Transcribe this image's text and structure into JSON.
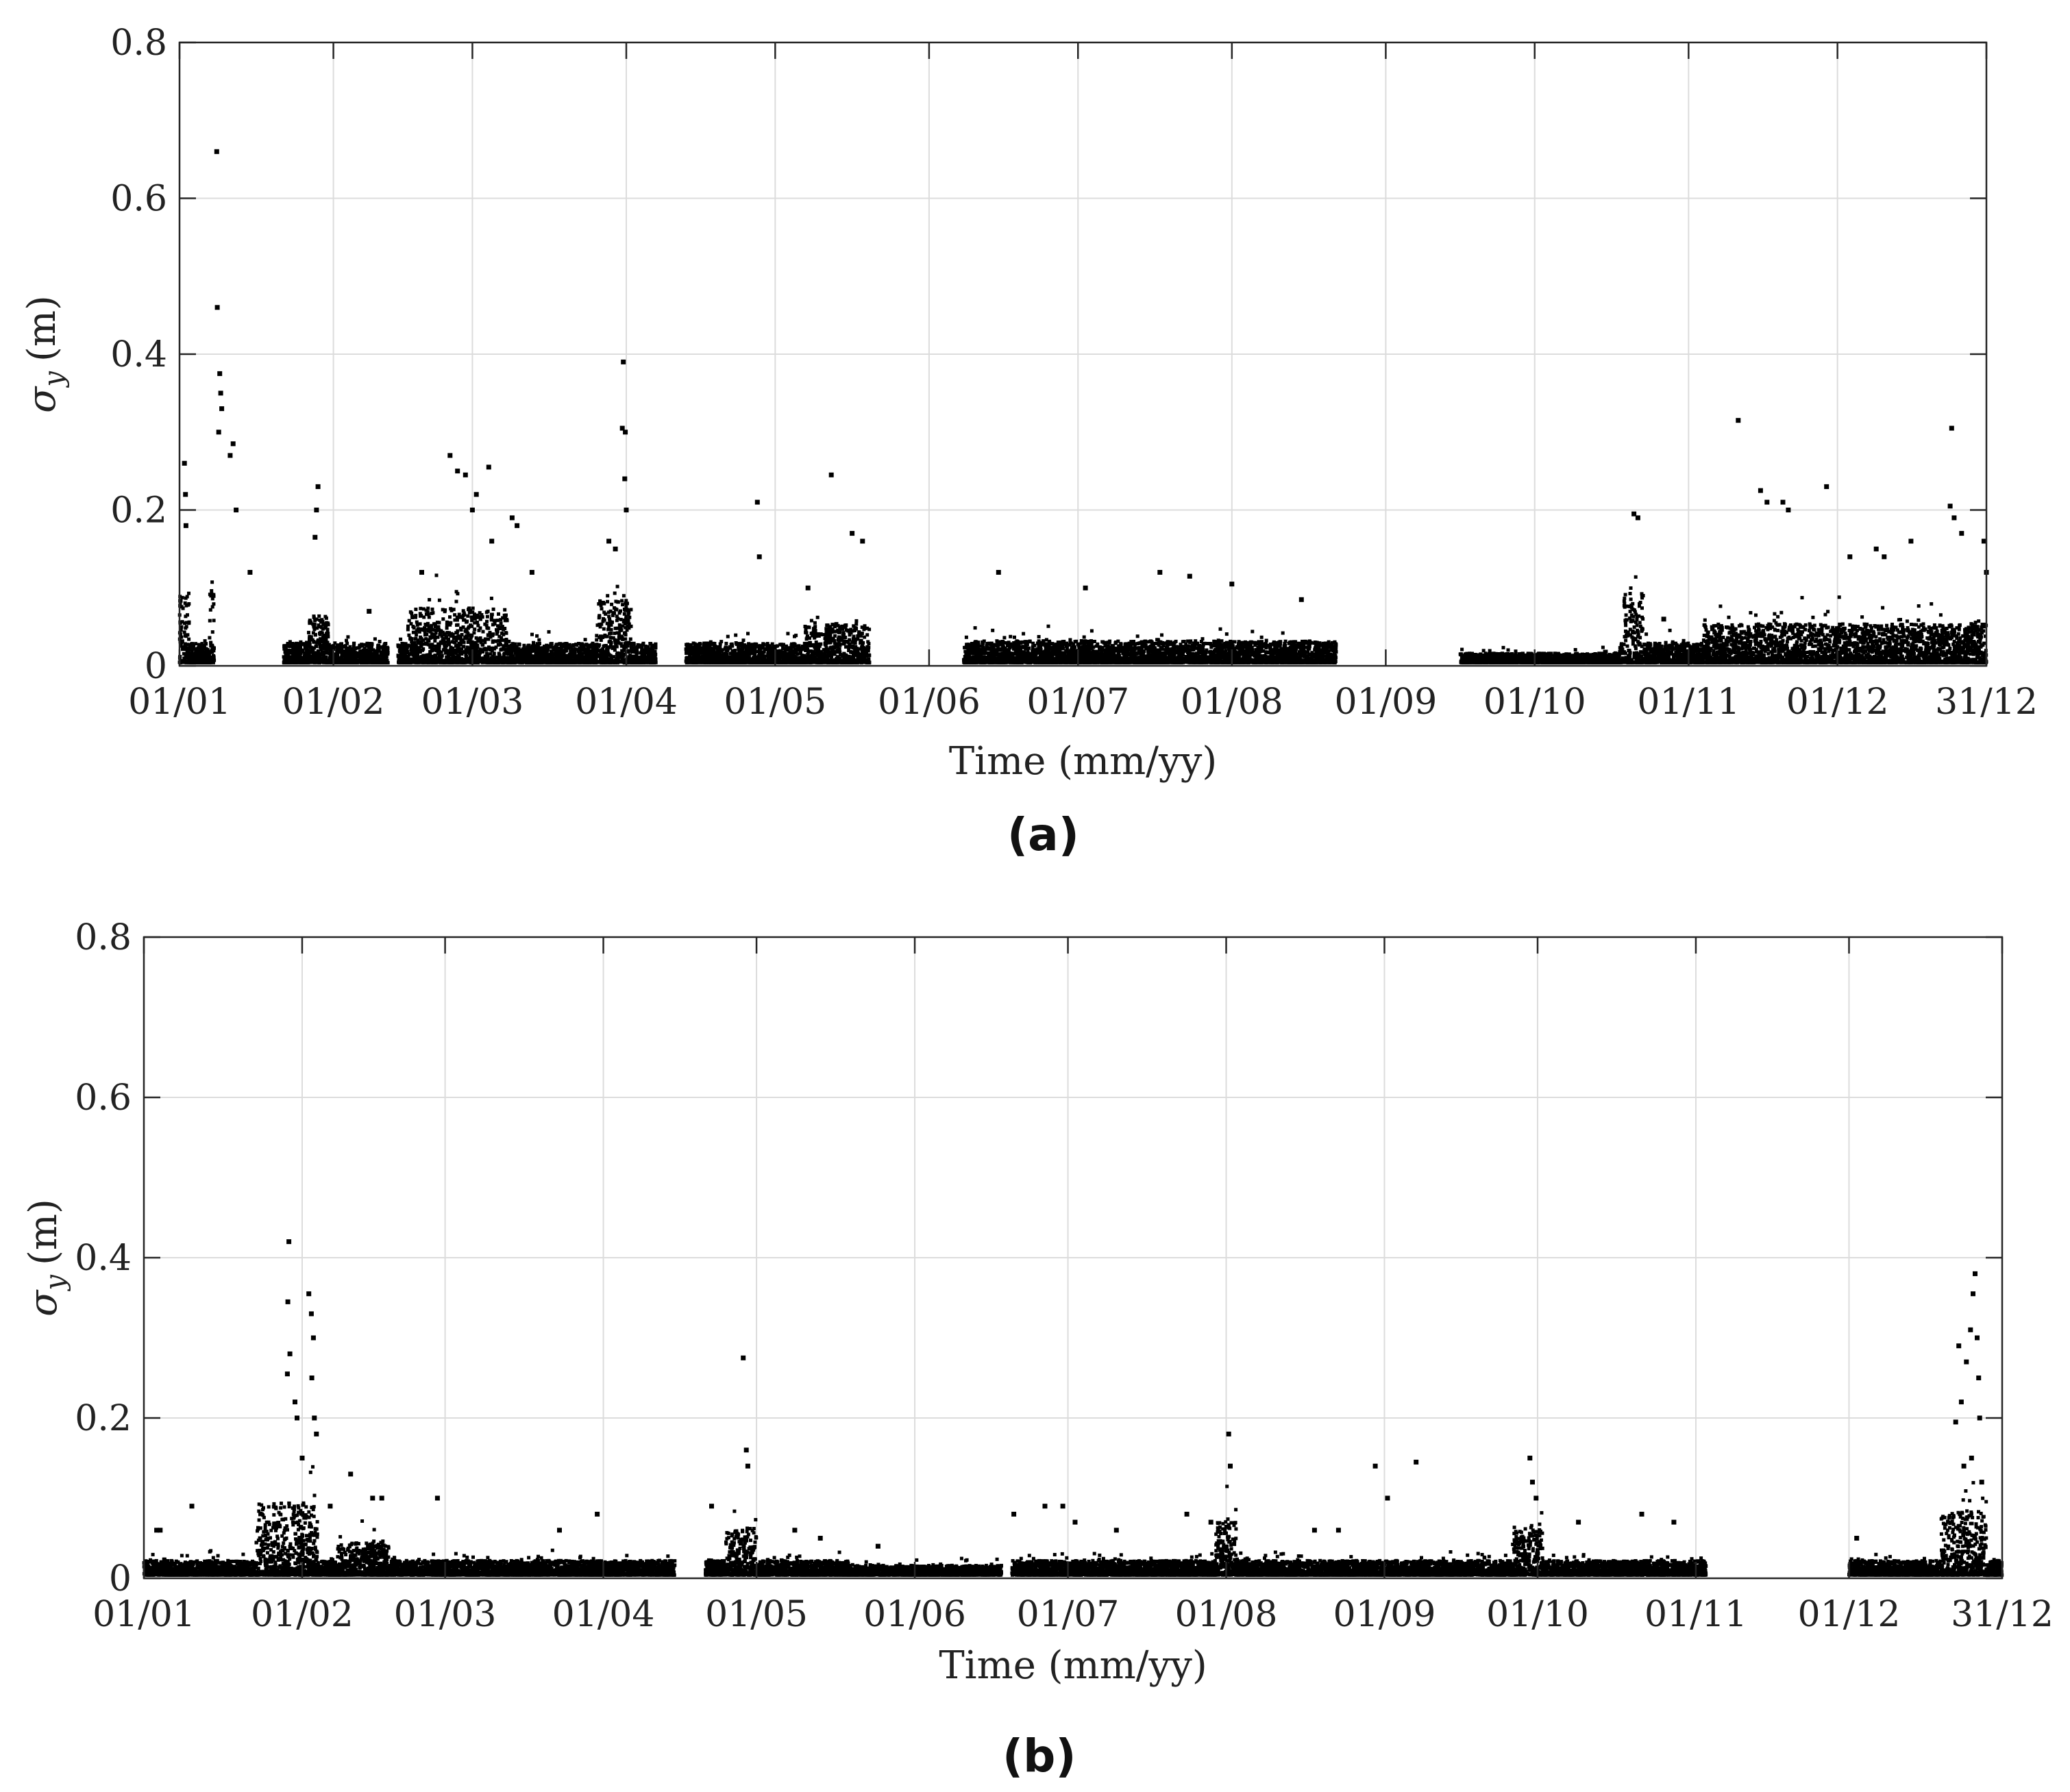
{
  "figure": {
    "panel_a_label": "(a)",
    "panel_b_label": "(b)"
  },
  "chart_data": [
    {
      "type": "scatter",
      "panel": "(a)",
      "xlabel": "Time (mm/yy)",
      "ylabel": "σ",
      "ylabel_subscript": "y",
      "ylabel_unit": "(m)",
      "x_tick_labels": [
        "01/01",
        "01/02",
        "01/03",
        "01/04",
        "01/05",
        "01/06",
        "01/07",
        "01/08",
        "01/09",
        "01/10",
        "01/11",
        "01/12",
        "31/12"
      ],
      "x_tick_days": [
        0,
        31,
        59,
        90,
        120,
        151,
        181,
        212,
        243,
        273,
        304,
        334,
        364
      ],
      "ylim": [
        0,
        0.8
      ],
      "y_tick_labels": [
        "0",
        "0.2",
        "0.4",
        "0.6",
        "0.8"
      ],
      "y_ticks": [
        0,
        0.2,
        0.4,
        0.6,
        0.8
      ],
      "grid": true,
      "marker_color": "#000000",
      "data_ranges_days": [
        [
          0,
          7
        ],
        [
          21,
          42
        ],
        [
          44,
          96
        ],
        [
          102,
          139
        ],
        [
          158,
          233
        ],
        [
          258,
          307
        ],
        [
          307,
          364
        ]
      ],
      "outliers": [
        [
          1.0,
          0.26
        ],
        [
          1.2,
          0.22
        ],
        [
          1.3,
          0.18
        ],
        [
          7.5,
          0.66
        ],
        [
          7.6,
          0.46
        ],
        [
          8.1,
          0.375
        ],
        [
          8.3,
          0.35
        ],
        [
          7.9,
          0.3
        ],
        [
          8.5,
          0.33
        ],
        [
          10.8,
          0.285
        ],
        [
          10.2,
          0.27
        ],
        [
          11.4,
          0.2
        ],
        [
          14.2,
          0.12
        ],
        [
          27.9,
          0.23
        ],
        [
          27.6,
          0.2
        ],
        [
          27.3,
          0.165
        ],
        [
          38.2,
          0.07
        ],
        [
          48.8,
          0.12
        ],
        [
          54.5,
          0.27
        ],
        [
          56.0,
          0.25
        ],
        [
          57.6,
          0.245
        ],
        [
          59.0,
          0.2
        ],
        [
          59.8,
          0.22
        ],
        [
          62.3,
          0.255
        ],
        [
          62.9,
          0.16
        ],
        [
          67.0,
          0.19
        ],
        [
          68.0,
          0.18
        ],
        [
          71.0,
          0.12
        ],
        [
          89.4,
          0.39
        ],
        [
          89.2,
          0.305
        ],
        [
          89.8,
          0.3
        ],
        [
          89.7,
          0.24
        ],
        [
          90.0,
          0.2
        ],
        [
          86.5,
          0.16
        ],
        [
          87.8,
          0.15
        ],
        [
          116.4,
          0.21
        ],
        [
          116.8,
          0.14
        ],
        [
          131.3,
          0.245
        ],
        [
          135.5,
          0.17
        ],
        [
          137.6,
          0.16
        ],
        [
          126.6,
          0.1
        ],
        [
          165.0,
          0.12
        ],
        [
          182.5,
          0.1
        ],
        [
          197.5,
          0.12
        ],
        [
          203.5,
          0.115
        ],
        [
          212.0,
          0.105
        ],
        [
          226.0,
          0.085
        ],
        [
          293.0,
          0.195
        ],
        [
          293.8,
          0.19
        ],
        [
          299.0,
          0.06
        ],
        [
          314.0,
          0.315
        ],
        [
          318.5,
          0.225
        ],
        [
          319.8,
          0.21
        ],
        [
          323.0,
          0.21
        ],
        [
          324.1,
          0.2
        ],
        [
          331.8,
          0.23
        ],
        [
          336.5,
          0.14
        ],
        [
          341.8,
          0.15
        ],
        [
          343.4,
          0.14
        ],
        [
          348.8,
          0.16
        ],
        [
          356.7,
          0.205
        ],
        [
          357.5,
          0.19
        ],
        [
          357.0,
          0.305
        ],
        [
          359.0,
          0.17
        ],
        [
          363.5,
          0.16
        ],
        [
          364.0,
          0.12
        ]
      ]
    },
    {
      "type": "scatter",
      "panel": "(b)",
      "xlabel": "Time (mm/yy)",
      "ylabel": "σ",
      "ylabel_subscript": "y",
      "ylabel_unit": "(m)",
      "x_tick_labels": [
        "01/01",
        "01/02",
        "01/03",
        "01/04",
        "01/05",
        "01/06",
        "01/07",
        "01/08",
        "01/09",
        "01/10",
        "01/11",
        "01/12",
        "31/12"
      ],
      "x_tick_days": [
        0,
        31,
        59,
        90,
        120,
        151,
        181,
        212,
        243,
        273,
        304,
        334,
        364
      ],
      "ylim": [
        0,
        0.8
      ],
      "y_tick_labels": [
        "0",
        "0.2",
        "0.4",
        "0.6",
        "0.8"
      ],
      "y_ticks": [
        0,
        0.2,
        0.4,
        0.6,
        0.8
      ],
      "grid": true,
      "marker_color": "#000000",
      "data_ranges_days": [
        [
          0,
          104
        ],
        [
          110,
          168
        ],
        [
          170,
          306
        ],
        [
          334,
          364
        ]
      ],
      "outliers": [
        [
          2.5,
          0.06
        ],
        [
          3.2,
          0.06
        ],
        [
          9.4,
          0.09
        ],
        [
          28.4,
          0.42
        ],
        [
          28.2,
          0.345
        ],
        [
          28.6,
          0.28
        ],
        [
          28.1,
          0.255
        ],
        [
          29.6,
          0.22
        ],
        [
          30.0,
          0.2
        ],
        [
          31.0,
          0.15
        ],
        [
          32.3,
          0.355
        ],
        [
          32.8,
          0.33
        ],
        [
          33.2,
          0.3
        ],
        [
          32.9,
          0.25
        ],
        [
          33.4,
          0.2
        ],
        [
          33.8,
          0.18
        ],
        [
          36.5,
          0.09
        ],
        [
          40.5,
          0.13
        ],
        [
          44.8,
          0.1
        ],
        [
          46.6,
          0.1
        ],
        [
          57.5,
          0.1
        ],
        [
          81.4,
          0.06
        ],
        [
          88.8,
          0.08
        ],
        [
          111.2,
          0.09
        ],
        [
          117.4,
          0.275
        ],
        [
          118.0,
          0.16
        ],
        [
          118.3,
          0.14
        ],
        [
          127.5,
          0.06
        ],
        [
          132.5,
          0.05
        ],
        [
          143.8,
          0.04
        ],
        [
          170.4,
          0.08
        ],
        [
          176.5,
          0.09
        ],
        [
          180.0,
          0.09
        ],
        [
          182.4,
          0.07
        ],
        [
          190.5,
          0.06
        ],
        [
          204.3,
          0.08
        ],
        [
          209.0,
          0.07
        ],
        [
          212.5,
          0.18
        ],
        [
          212.8,
          0.14
        ],
        [
          229.3,
          0.06
        ],
        [
          234.0,
          0.06
        ],
        [
          241.2,
          0.14
        ],
        [
          243.6,
          0.1
        ],
        [
          249.2,
          0.145
        ],
        [
          271.5,
          0.15
        ],
        [
          272.0,
          0.12
        ],
        [
          272.7,
          0.1
        ],
        [
          281.0,
          0.07
        ],
        [
          293.4,
          0.08
        ],
        [
          299.7,
          0.07
        ],
        [
          335.5,
          0.05
        ],
        [
          354.9,
          0.195
        ],
        [
          355.5,
          0.29
        ],
        [
          356.0,
          0.22
        ],
        [
          357.0,
          0.27
        ],
        [
          357.8,
          0.31
        ],
        [
          358.3,
          0.355
        ],
        [
          358.7,
          0.38
        ],
        [
          359.1,
          0.3
        ],
        [
          359.4,
          0.25
        ],
        [
          359.6,
          0.2
        ],
        [
          358.0,
          0.15
        ],
        [
          356.5,
          0.14
        ],
        [
          360.0,
          0.12
        ]
      ]
    }
  ]
}
